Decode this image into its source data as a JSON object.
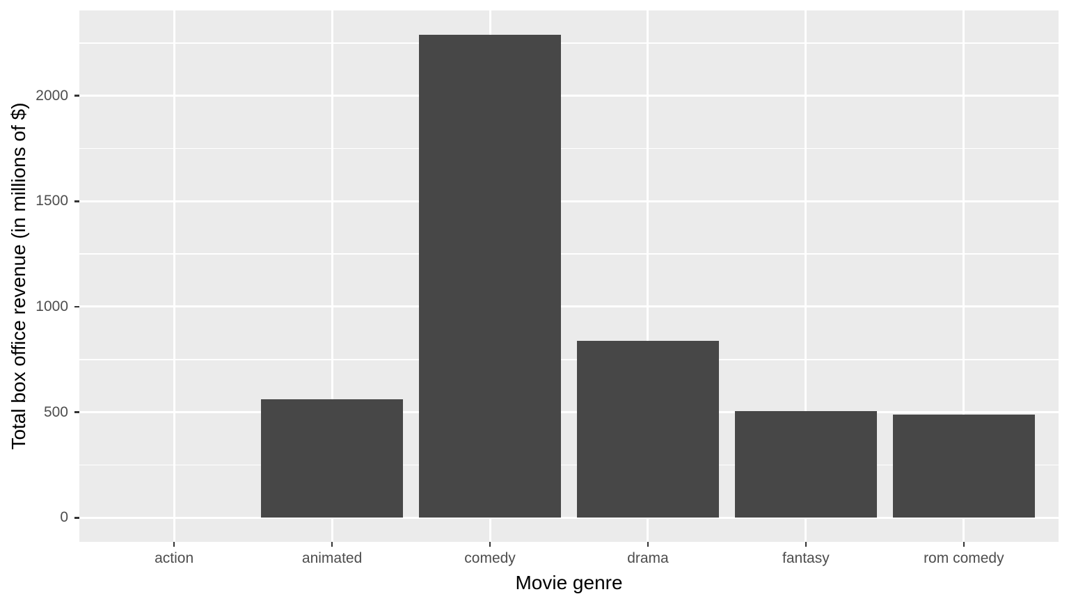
{
  "figure": {
    "kind": "ggplot-style bar chart",
    "background": "#FFFFFF"
  },
  "chart_data": {
    "type": "bar",
    "title": "",
    "categories": [
      "action",
      "animated",
      "comedy",
      "drama",
      "fantasy",
      "rom comedy"
    ],
    "values": [
      0,
      560,
      2290,
      838,
      505,
      490
    ],
    "xlabel": "Movie genre",
    "ylabel": "Total box office revenue (in millions of $)",
    "ylim": [
      0,
      2290
    ],
    "y_major_ticks": [
      0,
      500,
      1000,
      1500,
      2000
    ],
    "y_minor_ticks": [
      250,
      750,
      1250,
      1750,
      2250
    ],
    "y_expansion_fraction": 0.05,
    "bar_width_fraction": 0.9,
    "legend_position": "none",
    "grid": "on",
    "colors": {
      "bar_fill": "#474747",
      "panel_background": "#EBEBEB",
      "gridline": "#FFFFFF",
      "tick_mark": "#333333",
      "tick_label": "#4D4D4D",
      "axis_title": "#000000"
    }
  }
}
